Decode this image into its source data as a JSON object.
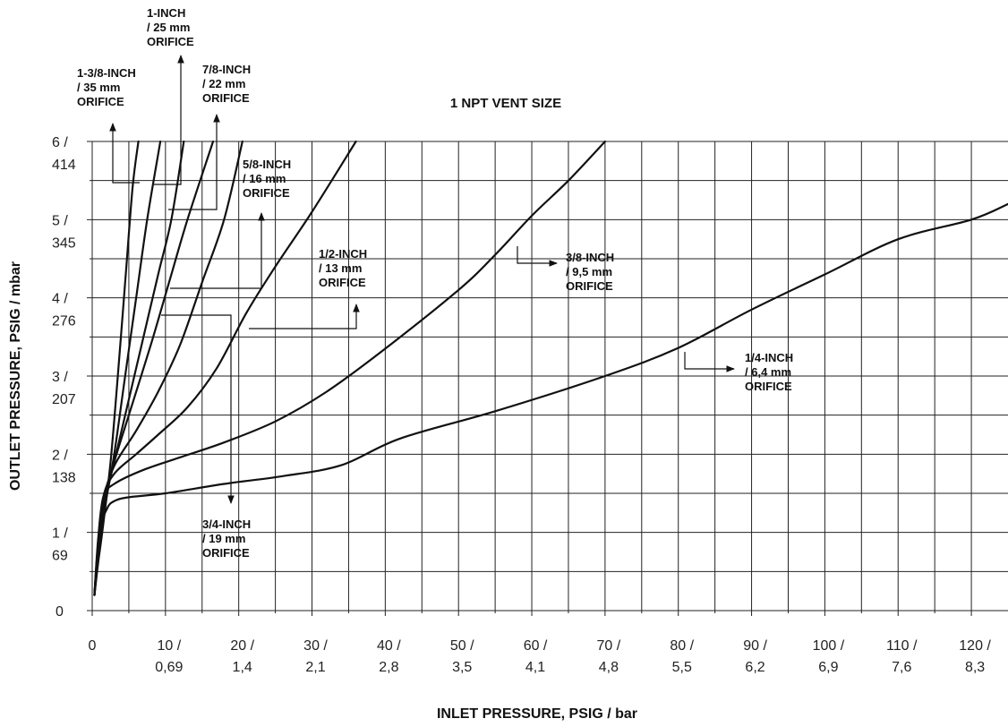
{
  "chart_data": {
    "type": "line",
    "title": "1 NPT VENT SIZE",
    "xlabel": "INLET PRESSURE, PSIG / bar",
    "ylabel": "OUTLET PRESSURE, PSIG / mbar",
    "xlim": [
      0,
      125
    ],
    "ylim": [
      0,
      6
    ],
    "grid": true,
    "legend": "none",
    "x_ticks": [
      {
        "value": 0,
        "line1": "0",
        "line2": ""
      },
      {
        "value": 10,
        "line1": "10 /",
        "line2": "0,69"
      },
      {
        "value": 20,
        "line1": "20 /",
        "line2": "1,4"
      },
      {
        "value": 30,
        "line1": "30 /",
        "line2": "2,1"
      },
      {
        "value": 40,
        "line1": "40 /",
        "line2": "2,8"
      },
      {
        "value": 50,
        "line1": "50 /",
        "line2": "3,5"
      },
      {
        "value": 60,
        "line1": "60 /",
        "line2": "4,1"
      },
      {
        "value": 70,
        "line1": "70 /",
        "line2": "4,8"
      },
      {
        "value": 80,
        "line1": "80 /",
        "line2": "5,5"
      },
      {
        "value": 90,
        "line1": "90 /",
        "line2": "6,2"
      },
      {
        "value": 100,
        "line1": "100 /",
        "line2": "6,9"
      },
      {
        "value": 110,
        "line1": "110 /",
        "line2": "7,6"
      },
      {
        "value": 120,
        "line1": "120 /",
        "line2": "8,3"
      }
    ],
    "y_ticks": [
      {
        "value": 0,
        "line1": "0",
        "line2": ""
      },
      {
        "value": 1,
        "line1": "1 /",
        "line2": "69"
      },
      {
        "value": 2,
        "line1": "2 /",
        "line2": "138"
      },
      {
        "value": 3,
        "line1": "3 /",
        "line2": "207"
      },
      {
        "value": 4,
        "line1": "4 /",
        "line2": "276"
      },
      {
        "value": 5,
        "line1": "5 /",
        "line2": "345"
      },
      {
        "value": 6,
        "line1": "6 /",
        "line2": "414"
      }
    ],
    "series": [
      {
        "label": [
          "1-3/8-INCH",
          "/ 35 mm",
          "ORIFICE"
        ],
        "points": [
          [
            0.3,
            0.2
          ],
          [
            0.8,
            0.6
          ],
          [
            1.5,
            1.1
          ],
          [
            2.5,
            1.9
          ],
          [
            3.5,
            3.0
          ],
          [
            4.5,
            4.2
          ],
          [
            5.5,
            5.4
          ],
          [
            6.3,
            6.0
          ]
        ]
      },
      {
        "label": [
          "1-INCH",
          "/ 25 mm",
          "ORIFICE"
        ],
        "points": [
          [
            0.3,
            0.2
          ],
          [
            0.8,
            0.65
          ],
          [
            1.5,
            1.2
          ],
          [
            3,
            2.0
          ],
          [
            4.5,
            3.0
          ],
          [
            6,
            4.0
          ],
          [
            7.5,
            5.0
          ],
          [
            9.3,
            6.0
          ]
        ]
      },
      {
        "label": [
          "7/8-INCH",
          "/ 22 mm",
          "ORIFICE"
        ],
        "points": [
          [
            0.3,
            0.2
          ],
          [
            0.8,
            0.7
          ],
          [
            1.5,
            1.3
          ],
          [
            3,
            1.9
          ],
          [
            5,
            2.7
          ],
          [
            7,
            3.5
          ],
          [
            9,
            4.3
          ],
          [
            10.8,
            5.0
          ],
          [
            12.5,
            6.0
          ]
        ]
      },
      {
        "label": [
          "3/4-INCH",
          "/ 19 mm",
          "ORIFICE"
        ],
        "points": [
          [
            0.3,
            0.2
          ],
          [
            0.8,
            0.75
          ],
          [
            1.5,
            1.35
          ],
          [
            3,
            1.9
          ],
          [
            5,
            2.5
          ],
          [
            8,
            3.4
          ],
          [
            10.5,
            4.2
          ],
          [
            13,
            5.0
          ],
          [
            16.5,
            6.0
          ]
        ]
      },
      {
        "label": [
          "5/8-INCH",
          "/ 16 mm",
          "ORIFICE"
        ],
        "points": [
          [
            0.3,
            0.2
          ],
          [
            0.8,
            0.8
          ],
          [
            1.5,
            1.4
          ],
          [
            3,
            1.85
          ],
          [
            6,
            2.3
          ],
          [
            9,
            2.8
          ],
          [
            12,
            3.4
          ],
          [
            15,
            4.2
          ],
          [
            18,
            5.0
          ],
          [
            20.5,
            6.0
          ]
        ]
      },
      {
        "label": [
          "1/2-INCH",
          "/ 13 mm",
          "ORIFICE"
        ],
        "points": [
          [
            0.3,
            0.2
          ],
          [
            0.8,
            0.85
          ],
          [
            1.5,
            1.45
          ],
          [
            3,
            1.75
          ],
          [
            6,
            2.0
          ],
          [
            9,
            2.25
          ],
          [
            13,
            2.6
          ],
          [
            17,
            3.1
          ],
          [
            21,
            3.8
          ],
          [
            25,
            4.4
          ],
          [
            30,
            5.1
          ],
          [
            36,
            6.0
          ]
        ]
      },
      {
        "label": [
          "3/8-INCH",
          "/ 9,5 mm",
          "ORIFICE"
        ],
        "points": [
          [
            0.3,
            0.2
          ],
          [
            0.8,
            0.9
          ],
          [
            1.5,
            1.45
          ],
          [
            3,
            1.62
          ],
          [
            7,
            1.8
          ],
          [
            12,
            1.96
          ],
          [
            18,
            2.15
          ],
          [
            25,
            2.42
          ],
          [
            32,
            2.8
          ],
          [
            40,
            3.35
          ],
          [
            50,
            4.1
          ],
          [
            55,
            4.55
          ],
          [
            60,
            5.05
          ],
          [
            65,
            5.5
          ],
          [
            70,
            6.0
          ]
        ]
      },
      {
        "label": [
          "1/4-INCH",
          "/ 6,4 mm",
          "ORIFICE"
        ],
        "points": [
          [
            0.3,
            0.2
          ],
          [
            1,
            1.0
          ],
          [
            2,
            1.3
          ],
          [
            3,
            1.4
          ],
          [
            5,
            1.45
          ],
          [
            10,
            1.5
          ],
          [
            18,
            1.62
          ],
          [
            26,
            1.72
          ],
          [
            34,
            1.86
          ],
          [
            42,
            2.2
          ],
          [
            55,
            2.55
          ],
          [
            70,
            3.0
          ],
          [
            80,
            3.36
          ],
          [
            90,
            3.85
          ],
          [
            100,
            4.3
          ],
          [
            110,
            4.75
          ],
          [
            120,
            5.0
          ],
          [
            125,
            5.2
          ]
        ]
      }
    ]
  }
}
